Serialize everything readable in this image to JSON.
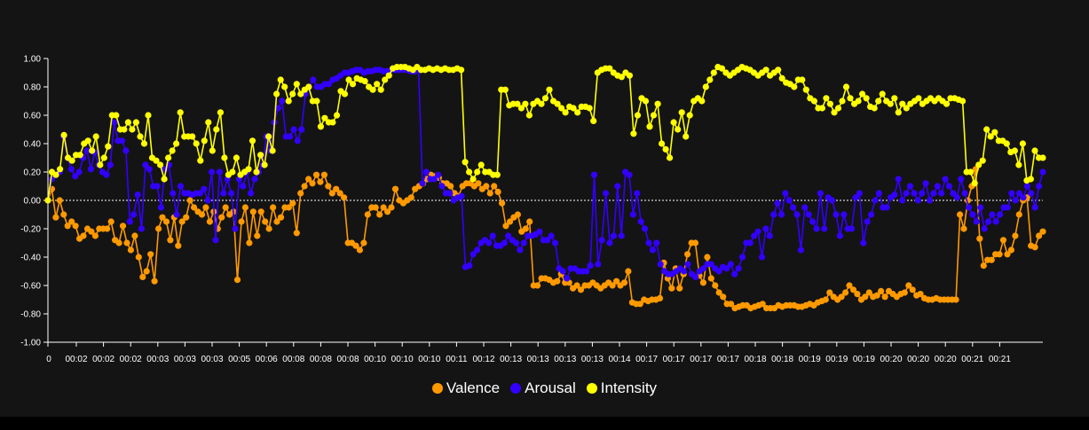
{
  "chart_data": {
    "type": "line",
    "y_ticks": [
      "1.00",
      "0.80",
      "0.60",
      "0.40",
      "0.20",
      "0.00",
      "-0.20",
      "-0.40",
      "-0.60",
      "-0.80",
      "-1.00"
    ],
    "ylim": [
      -1.0,
      1.0
    ],
    "x_tick_labels": [
      "0",
      "00:02",
      "00:02",
      "00:02",
      "00:03",
      "00:03",
      "00:03",
      "00:05",
      "00:06",
      "00:08",
      "00:08",
      "00:08",
      "00:10",
      "00:10",
      "00:10",
      "00:11",
      "00:12",
      "00:13",
      "00:13",
      "00:13",
      "00:13",
      "00:14",
      "00:17",
      "00:17",
      "00:17",
      "00:17",
      "00:18",
      "00:18",
      "00:19",
      "00:19",
      "00:19",
      "00:20",
      "00:20",
      "00:20",
      "00:21",
      "00:21"
    ],
    "zero_line": "dotted",
    "legend_position": "bottom-center",
    "series": [
      {
        "name": "Valence",
        "color": "#FF9900",
        "values": [
          0.0,
          0.08,
          -0.12,
          0.0,
          -0.1,
          -0.18,
          -0.15,
          -0.18,
          -0.27,
          -0.25,
          -0.2,
          -0.22,
          -0.25,
          -0.2,
          -0.2,
          -0.2,
          -0.15,
          -0.28,
          -0.3,
          -0.18,
          -0.3,
          -0.35,
          -0.25,
          -0.4,
          -0.54,
          -0.5,
          -0.38,
          -0.57,
          -0.2,
          -0.12,
          -0.15,
          -0.28,
          -0.12,
          -0.32,
          -0.15,
          -0.12,
          0.0,
          -0.05,
          -0.08,
          -0.1,
          -0.05,
          -0.15,
          -0.08,
          -0.2,
          -0.12,
          -0.05,
          -0.1,
          -0.08,
          -0.56,
          -0.15,
          -0.05,
          -0.3,
          -0.08,
          -0.25,
          -0.08,
          -0.15,
          -0.2,
          -0.05,
          -0.15,
          -0.12,
          -0.05,
          -0.05,
          -0.02,
          -0.23,
          0.05,
          0.1,
          0.15,
          0.12,
          0.18,
          0.13,
          0.18,
          0.1,
          0.05,
          0.08,
          0.05,
          0.02,
          -0.3,
          -0.3,
          -0.32,
          -0.35,
          -0.3,
          -0.1,
          -0.05,
          -0.05,
          -0.1,
          -0.05,
          -0.08,
          -0.05,
          0.08,
          0.0,
          -0.02,
          0.0,
          0.02,
          0.08,
          0.1,
          0.12,
          0.15,
          0.18,
          0.17,
          0.16,
          0.12,
          0.12,
          0.1,
          0.05,
          0.03,
          0.1,
          0.12,
          0.12,
          0.1,
          0.12,
          0.08,
          0.1,
          0.05,
          0.1,
          0.06,
          -0.02,
          -0.18,
          -0.15,
          -0.12,
          -0.1,
          -0.22,
          -0.2,
          -0.15,
          -0.6,
          -0.6,
          -0.55,
          -0.55,
          -0.56,
          -0.58,
          -0.57,
          -0.52,
          -0.58,
          -0.58,
          -0.62,
          -0.6,
          -0.63,
          -0.6,
          -0.6,
          -0.58,
          -0.6,
          -0.62,
          -0.6,
          -0.58,
          -0.6,
          -0.57,
          -0.6,
          -0.58,
          -0.5,
          -0.72,
          -0.73,
          -0.73,
          -0.7,
          -0.71,
          -0.7,
          -0.7,
          -0.69,
          -0.44,
          -0.55,
          -0.62,
          -0.48,
          -0.62,
          -0.52,
          -0.38,
          -0.3,
          -0.3,
          -0.53,
          -0.58,
          -0.4,
          -0.55,
          -0.6,
          -0.65,
          -0.68,
          -0.73,
          -0.73,
          -0.76,
          -0.75,
          -0.74,
          -0.74,
          -0.76,
          -0.75,
          -0.74,
          -0.73,
          -0.76,
          -0.76,
          -0.76,
          -0.74,
          -0.75,
          -0.74,
          -0.74,
          -0.74,
          -0.75,
          -0.75,
          -0.74,
          -0.73,
          -0.74,
          -0.72,
          -0.71,
          -0.7,
          -0.65,
          -0.68,
          -0.7,
          -0.68,
          -0.65,
          -0.6,
          -0.63,
          -0.66,
          -0.7,
          -0.68,
          -0.65,
          -0.68,
          -0.67,
          -0.64,
          -0.68,
          -0.64,
          -0.66,
          -0.68,
          -0.66,
          -0.65,
          -0.6,
          -0.63,
          -0.67,
          -0.66,
          -0.69,
          -0.7,
          -0.7,
          -0.69,
          -0.7,
          -0.7,
          -0.7,
          -0.7,
          -0.7,
          -0.1,
          -0.2,
          0.0,
          0.1,
          0.22,
          -0.27,
          -0.46,
          -0.42,
          -0.42,
          -0.38,
          -0.38,
          -0.28,
          -0.38,
          -0.35,
          -0.25,
          -0.1,
          0.0,
          0.02,
          -0.32,
          -0.33,
          -0.25,
          -0.22
        ]
      },
      {
        "name": "Arousal",
        "color": "#3300FF",
        "values": [
          0.0,
          0.15,
          0.18,
          0.2,
          0.45,
          0.3,
          0.22,
          0.17,
          0.2,
          0.3,
          0.35,
          0.22,
          0.34,
          0.25,
          0.2,
          0.18,
          0.25,
          0.55,
          0.42,
          0.42,
          0.35,
          -0.15,
          -0.1,
          0.04,
          -0.2,
          0.25,
          0.22,
          0.1,
          0.1,
          -0.05,
          0.22,
          0.25,
          0.05,
          -0.1,
          0.1,
          0.05,
          0.05,
          0.04,
          0.05,
          0.05,
          0.08,
          0.0,
          0.2,
          -0.28,
          0.2,
          0.05,
          0.15,
          0.05,
          -0.2,
          0.15,
          0.1,
          0.2,
          0.05,
          0.15,
          0.2,
          0.25,
          0.45,
          0.35,
          0.55,
          0.65,
          0.7,
          0.45,
          0.45,
          0.5,
          0.42,
          0.5,
          0.75,
          0.8,
          0.85,
          0.8,
          0.8,
          0.82,
          0.82,
          0.85,
          0.86,
          0.88,
          0.9,
          0.9,
          0.91,
          0.92,
          0.92,
          0.9,
          0.91,
          0.91,
          0.92,
          0.92,
          0.91,
          0.91,
          0.92,
          0.92,
          0.92,
          0.92,
          0.92,
          0.91,
          0.91,
          0.92,
          0.12,
          0.2,
          0.15,
          0.15,
          0.18,
          0.1,
          0.05,
          0.05,
          0.0,
          0.02,
          0.03,
          -0.47,
          -0.46,
          -0.38,
          -0.35,
          -0.3,
          -0.28,
          -0.3,
          -0.25,
          -0.32,
          -0.32,
          -0.3,
          -0.25,
          -0.28,
          -0.3,
          -0.35,
          -0.3,
          -0.25,
          -0.25,
          -0.24,
          -0.22,
          -0.28,
          -0.28,
          -0.25,
          -0.3,
          -0.48,
          -0.5,
          -0.55,
          -0.48,
          -0.48,
          -0.5,
          -0.5,
          -0.5,
          -0.46,
          0.18,
          -0.45,
          -0.28,
          0.05,
          -0.3,
          -0.25,
          0.1,
          -0.25,
          0.2,
          0.18,
          -0.1,
          0.05,
          -0.15,
          -0.2,
          -0.3,
          -0.35,
          -0.3,
          -0.45,
          -0.5,
          -0.52,
          -0.52,
          -0.5,
          -0.48,
          -0.5,
          -0.45,
          -0.52,
          -0.54,
          -0.5,
          -0.48,
          -0.45,
          -0.45,
          -0.48,
          -0.5,
          -0.47,
          -0.48,
          -0.45,
          -0.52,
          -0.48,
          -0.4,
          -0.3,
          -0.3,
          -0.25,
          -0.22,
          -0.4,
          -0.2,
          -0.25,
          -0.1,
          -0.02,
          -0.1,
          0.05,
          0.0,
          -0.05,
          -0.1,
          -0.35,
          -0.05,
          -0.1,
          -0.15,
          -0.2,
          0.05,
          -0.2,
          0.02,
          0.0,
          -0.1,
          -0.25,
          -0.1,
          -0.2,
          -0.2,
          0.02,
          0.05,
          -0.3,
          -0.15,
          -0.1,
          0.0,
          0.05,
          -0.05,
          -0.05,
          0.02,
          0.04,
          0.15,
          0.0,
          0.05,
          0.1,
          0.05,
          0.0,
          0.05,
          0.12,
          0.0,
          0.05,
          0.1,
          0.05,
          0.15,
          0.1,
          0.05,
          0.02,
          0.15,
          0.05,
          -0.05,
          -0.1,
          -0.15,
          -0.05,
          -0.2,
          -0.15,
          -0.1,
          -0.15,
          -0.1,
          -0.05,
          -0.05,
          0.05,
          0.0,
          0.05,
          0.02,
          0.1,
          0.05,
          -0.05,
          0.1,
          0.2
        ]
      },
      {
        "name": "Intensity",
        "color": "#FFFF00",
        "values": [
          0.0,
          0.2,
          0.18,
          0.22,
          0.46,
          0.3,
          0.28,
          0.32,
          0.32,
          0.4,
          0.42,
          0.35,
          0.45,
          0.25,
          0.3,
          0.38,
          0.6,
          0.6,
          0.5,
          0.5,
          0.55,
          0.5,
          0.55,
          0.45,
          0.4,
          0.6,
          0.3,
          0.28,
          0.25,
          0.15,
          0.3,
          0.35,
          0.4,
          0.62,
          0.45,
          0.45,
          0.45,
          0.4,
          0.28,
          0.42,
          0.55,
          0.35,
          0.5,
          0.62,
          0.3,
          0.18,
          0.2,
          0.3,
          0.18,
          0.2,
          0.22,
          0.42,
          0.2,
          0.32,
          0.25,
          0.45,
          0.35,
          0.75,
          0.85,
          0.8,
          0.7,
          0.75,
          0.82,
          0.75,
          0.78,
          0.8,
          0.7,
          0.7,
          0.52,
          0.58,
          0.55,
          0.55,
          0.6,
          0.77,
          0.75,
          0.85,
          0.82,
          0.86,
          0.85,
          0.84,
          0.8,
          0.78,
          0.82,
          0.78,
          0.85,
          0.88,
          0.93,
          0.94,
          0.94,
          0.94,
          0.93,
          0.92,
          0.94,
          0.92,
          0.92,
          0.93,
          0.92,
          0.93,
          0.92,
          0.93,
          0.92,
          0.92,
          0.93,
          0.92,
          0.27,
          0.2,
          0.15,
          0.2,
          0.25,
          0.2,
          0.2,
          0.18,
          0.18,
          0.78,
          0.78,
          0.67,
          0.68,
          0.68,
          0.65,
          0.68,
          0.6,
          0.68,
          0.7,
          0.68,
          0.72,
          0.78,
          0.7,
          0.68,
          0.65,
          0.62,
          0.66,
          0.65,
          0.62,
          0.66,
          0.66,
          0.65,
          0.56,
          0.9,
          0.92,
          0.93,
          0.93,
          0.9,
          0.88,
          0.87,
          0.9,
          0.88,
          0.47,
          0.6,
          0.72,
          0.7,
          0.52,
          0.6,
          0.68,
          0.4,
          0.36,
          0.3,
          0.55,
          0.5,
          0.62,
          0.45,
          0.6,
          0.7,
          0.72,
          0.7,
          0.8,
          0.85,
          0.9,
          0.94,
          0.93,
          0.9,
          0.88,
          0.9,
          0.92,
          0.94,
          0.93,
          0.92,
          0.9,
          0.88,
          0.9,
          0.92,
          0.88,
          0.9,
          0.92,
          0.86,
          0.83,
          0.82,
          0.8,
          0.85,
          0.85,
          0.78,
          0.72,
          0.7,
          0.65,
          0.65,
          0.72,
          0.68,
          0.62,
          0.65,
          0.7,
          0.8,
          0.72,
          0.68,
          0.7,
          0.75,
          0.72,
          0.66,
          0.65,
          0.7,
          0.75,
          0.7,
          0.68,
          0.72,
          0.62,
          0.68,
          0.65,
          0.68,
          0.7,
          0.72,
          0.68,
          0.7,
          0.72,
          0.7,
          0.72,
          0.7,
          0.68,
          0.72,
          0.72,
          0.71,
          0.7,
          0.2,
          0.2,
          0.12,
          0.25,
          0.28,
          0.5,
          0.45,
          0.48,
          0.42,
          0.42,
          0.4,
          0.34,
          0.35,
          0.25,
          0.4,
          0.14,
          0.15,
          0.35,
          0.3,
          0.3
        ]
      }
    ]
  }
}
